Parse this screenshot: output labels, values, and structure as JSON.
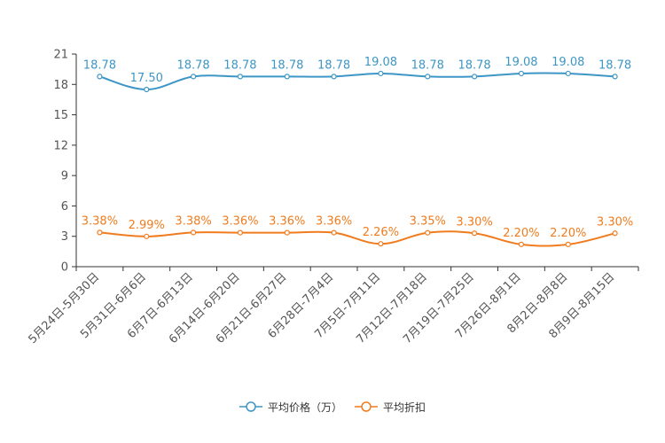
{
  "chart_data": {
    "type": "line",
    "categories": [
      "5月24日-5月30日",
      "5月31日-6月6日",
      "6月7日-6月13日",
      "6月14日-6月20日",
      "6月21日-6月27日",
      "6月28日-7月4日",
      "7月5日-7月11日",
      "7月12日-7月18日",
      "7月19日-7月25日",
      "7月26日-8月1日",
      "8月2日-8月8日",
      "8月9日-8月15日"
    ],
    "series": [
      {
        "name": "平均价格（万）",
        "color": "#3d96c5",
        "values": [
          18.78,
          17.5,
          18.78,
          18.78,
          18.78,
          18.78,
          19.08,
          18.78,
          18.78,
          19.08,
          19.08,
          18.78
        ],
        "labels": [
          "18.78",
          "17.50",
          "18.78",
          "18.78",
          "18.78",
          "18.78",
          "19.08",
          "18.78",
          "18.78",
          "19.08",
          "19.08",
          "18.78"
        ]
      },
      {
        "name": "平均折扣",
        "color": "#f07c1e",
        "values": [
          3.38,
          2.99,
          3.38,
          3.36,
          3.36,
          3.36,
          2.26,
          3.35,
          3.3,
          2.2,
          2.2,
          3.3
        ],
        "labels": [
          "3.38%",
          "2.99%",
          "3.38%",
          "3.36%",
          "3.36%",
          "3.36%",
          "2.26%",
          "3.35%",
          "3.30%",
          "2.20%",
          "2.20%",
          "3.30%"
        ]
      }
    ],
    "yticks": [
      "0",
      "3",
      "6",
      "9",
      "12",
      "15",
      "18",
      "21"
    ],
    "ylim": [
      0,
      21
    ],
    "title": "",
    "xlabel": "",
    "ylabel": "",
    "legend_position": "bottom-center"
  }
}
